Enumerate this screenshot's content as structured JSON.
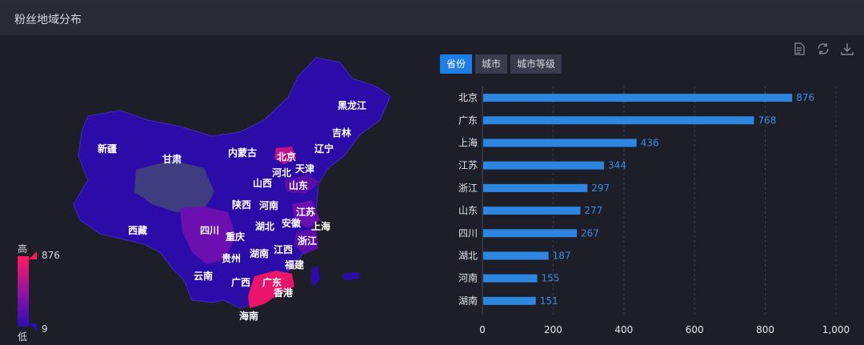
{
  "header": {
    "title": "粉丝地域分布"
  },
  "tools": [
    {
      "name": "data-view-icon"
    },
    {
      "name": "refresh-icon"
    },
    {
      "name": "download-icon"
    }
  ],
  "tabs": [
    {
      "label": "省份",
      "active": true
    },
    {
      "label": "城市",
      "active": false
    },
    {
      "label": "城市等级",
      "active": false
    }
  ],
  "legend": {
    "high": "高",
    "low": "低",
    "max": "876",
    "min": "9",
    "colors": [
      "#ff1a5f",
      "#8a14a6",
      "#2a0fb0"
    ]
  },
  "map": {
    "labels": [
      "黑龙江",
      "吉林",
      "辽宁",
      "内蒙古",
      "新疆",
      "甘肃",
      "北京",
      "天津",
      "河北",
      "山西",
      "山东",
      "陕西",
      "河南",
      "江苏",
      "上海",
      "安徽",
      "湖北",
      "四川",
      "重庆",
      "浙江",
      "西藏",
      "贵州",
      "湖南",
      "江西",
      "福建",
      "云南",
      "广西",
      "广东",
      "香港",
      "海南"
    ]
  },
  "chart_data": {
    "type": "bar",
    "orientation": "horizontal",
    "categories": [
      "北京",
      "广东",
      "上海",
      "江苏",
      "浙江",
      "山东",
      "四川",
      "湖北",
      "河南",
      "湖南"
    ],
    "values": [
      876,
      768,
      436,
      344,
      297,
      277,
      267,
      187,
      155,
      151
    ],
    "xlim": [
      0,
      1000
    ],
    "xticks": [
      "0",
      "200",
      "400",
      "600",
      "800",
      "1,000"
    ],
    "bar_color": "#2d86e0",
    "grid": true
  }
}
